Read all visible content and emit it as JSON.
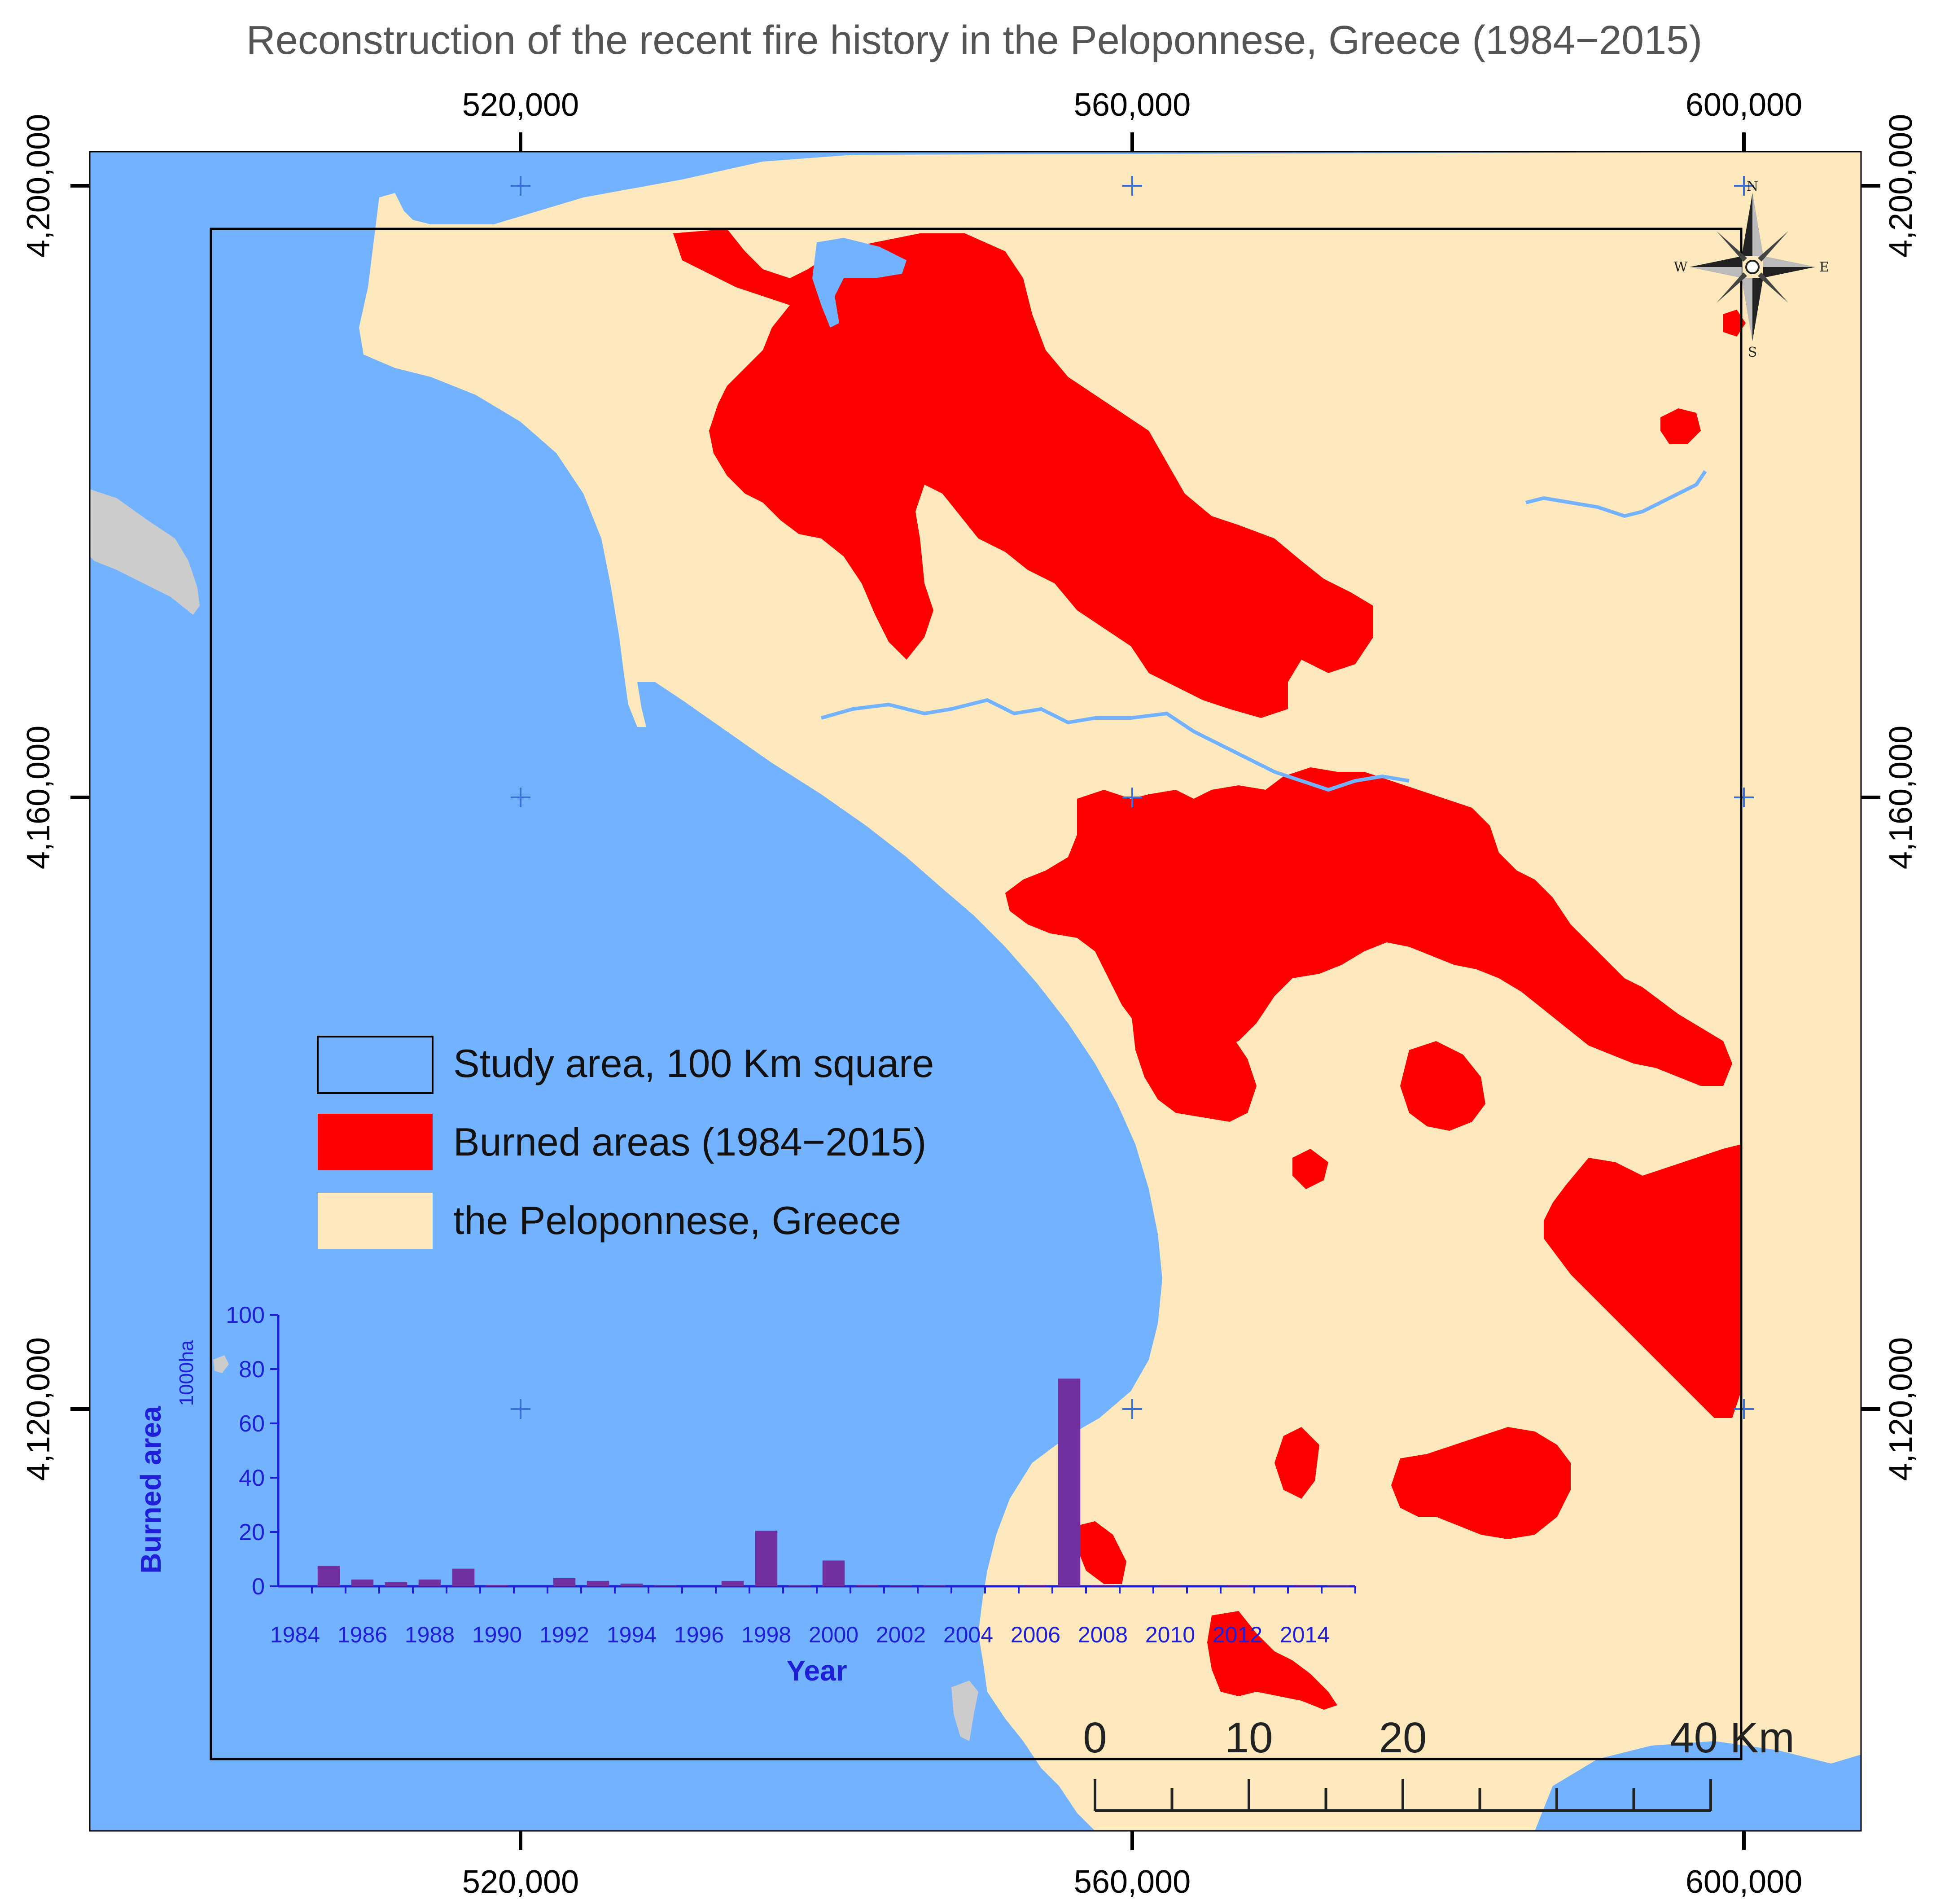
{
  "title": "Reconstruction of the recent fire history in the Peloponnese, Greece (1984−2015)",
  "colors": {
    "sea": "#73b2ff",
    "land": "#fde9bd",
    "burned": "#ff0000",
    "outside": "#cccccc",
    "bar": "#7030a0",
    "chart_axis": "#1f1fd8",
    "grid_cross": "#3a6fd8"
  },
  "axes": {
    "x_ticks": [
      "520,000",
      "560,000",
      "600,000"
    ],
    "y_ticks": [
      "4,200,000",
      "4,160,000",
      "4,120,000"
    ]
  },
  "legend": {
    "items": [
      {
        "label": "Study area, 100 Km square",
        "swatch": "outline"
      },
      {
        "label": "Burned areas (1984−2015)",
        "swatch": "burned"
      },
      {
        "label": "the Peloponnese, Greece",
        "swatch": "land"
      }
    ]
  },
  "scalebar": {
    "labels": [
      "0",
      "10",
      "20",
      "40 Km"
    ]
  },
  "north_arrow": {
    "icon": "compass-rose-icon",
    "n": "N",
    "s": "S",
    "e": "E",
    "w": "W"
  },
  "chart_data": {
    "type": "bar",
    "title": "",
    "xlabel": "Year",
    "ylabel": "Burned area",
    "yunit": "1000ha",
    "ylim": [
      0,
      100
    ],
    "yticks": [
      0,
      20,
      40,
      60,
      80,
      100
    ],
    "x_tick_labels": [
      "1984",
      "1986",
      "1988",
      "1990",
      "1992",
      "1994",
      "1996",
      "1998",
      "2000",
      "2002",
      "2004",
      "2006",
      "2008",
      "2010",
      "2012",
      "2014"
    ],
    "categories": [
      "1984",
      "1985",
      "1986",
      "1987",
      "1988",
      "1989",
      "1990",
      "1991",
      "1992",
      "1993",
      "1994",
      "1995",
      "1996",
      "1997",
      "1998",
      "1999",
      "2000",
      "2001",
      "2002",
      "2003",
      "2004",
      "2005",
      "2006",
      "2007",
      "2008",
      "2009",
      "2010",
      "2011",
      "2012",
      "2013",
      "2014",
      "2015"
    ],
    "values": [
      0,
      7.5,
      2.5,
      1.5,
      2.5,
      6.5,
      0.5,
      0,
      3,
      2,
      1,
      0.3,
      0,
      2,
      20.5,
      0.4,
      9.5,
      0.5,
      0.3,
      0.3,
      0,
      0,
      0.5,
      76.5,
      0.5,
      0,
      0.5,
      0,
      0.5,
      0,
      0.5,
      0.3
    ],
    "grid": false,
    "legend": "none"
  }
}
